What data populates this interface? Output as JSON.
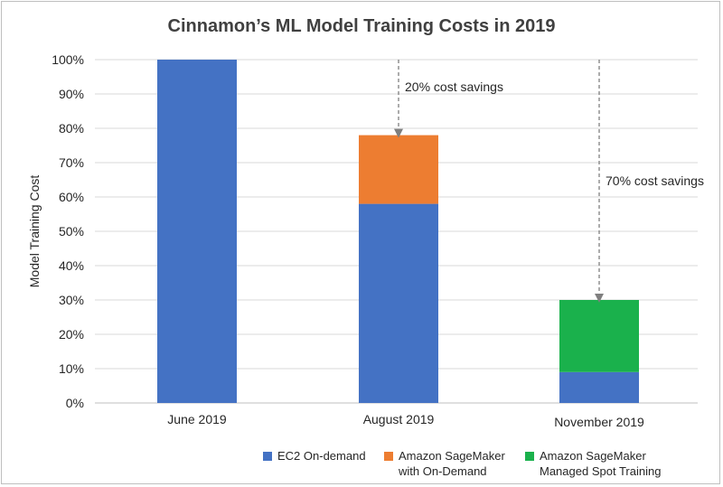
{
  "chart_data": {
    "type": "bar",
    "stacked": true,
    "title": "Cinnamon’s ML Model Training Costs in 2019",
    "ylabel": "Model Training Cost",
    "xlabel": "",
    "categories": [
      "June 2019",
      "August 2019",
      "November 2019"
    ],
    "series": [
      {
        "name": "EC2 On-demand",
        "color": "#4472c4",
        "values": [
          100,
          58,
          9
        ]
      },
      {
        "name": "Amazon SageMaker with On-Demand",
        "color": "#ed7d31",
        "values": [
          0,
          20,
          0
        ]
      },
      {
        "name": "Amazon SageMaker Managed Spot Training",
        "color": "#1ab14c",
        "values": [
          0,
          0,
          21
        ]
      }
    ],
    "legend_lines": [
      [
        "EC2 On-demand"
      ],
      [
        "Amazon SageMaker",
        "with On-Demand"
      ],
      [
        "Amazon SageMaker",
        "Managed Spot Training"
      ]
    ],
    "ylim": [
      0,
      100
    ],
    "yticks": [
      0,
      10,
      20,
      30,
      40,
      50,
      60,
      70,
      80,
      90,
      100
    ],
    "ytick_labels": [
      "0%",
      "10%",
      "20%",
      "30%",
      "40%",
      "50%",
      "60%",
      "70%",
      "80%",
      "90%",
      "100%"
    ],
    "grid": true,
    "legend_position": "bottom-right",
    "annotations": [
      {
        "text": "20% cost savings",
        "category_index": 1,
        "from": 100,
        "to": 78
      },
      {
        "text": "70% cost savings",
        "category_index": 2,
        "from": 100,
        "to": 30
      }
    ]
  }
}
